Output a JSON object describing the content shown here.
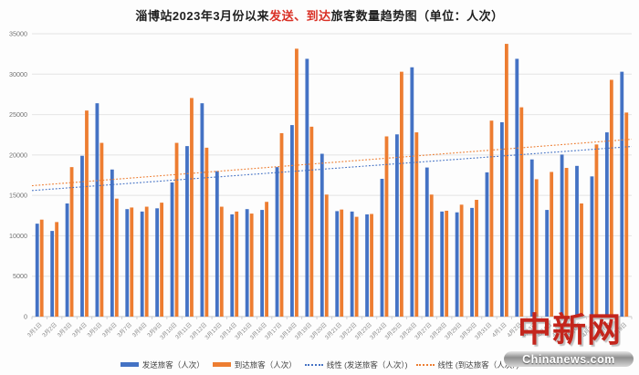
{
  "title": {
    "prefix": "淄博站2023年3月份以来",
    "highlight": "发送、到达",
    "suffix": "旅客数量趋势图（单位：人次）"
  },
  "watermark": {
    "logo_text": "中新网",
    "site_text": "Chinanews.com"
  },
  "chart_data": {
    "type": "bar",
    "title": "淄博站2023年3月份以来发送、到达旅客数量趋势图（单位：人次）",
    "xlabel": "",
    "ylabel": "",
    "ylim": [
      0,
      35000
    ],
    "ytick_step": 5000,
    "grid": true,
    "legend_position": "bottom",
    "categories": [
      "3月1日",
      "3月2日",
      "3月3日",
      "3月4日",
      "3月5日",
      "3月6日",
      "3月7日",
      "3月8日",
      "3月9日",
      "3月10日",
      "3月11日",
      "3月12日",
      "3月13日",
      "3月14日",
      "3月15日",
      "3月16日",
      "3月17日",
      "3月18日",
      "3月19日",
      "3月20日",
      "3月21日",
      "3月22日",
      "3月23日",
      "3月24日",
      "3月25日",
      "3月26日",
      "3月27日",
      "3月28日",
      "3月29日",
      "3月30日",
      "3月31日",
      "4月1日",
      "4月2日",
      "4月3日",
      "4月4日",
      "4月5日",
      "4月6日",
      "4月7日",
      "4月8日",
      "4月9日"
    ],
    "series": [
      {
        "name": "发送旅客（人次）",
        "color": "#4472C4",
        "values": [
          11500,
          10600,
          14000,
          19900,
          26400,
          18200,
          13300,
          13000,
          13400,
          16600,
          21100,
          26400,
          18000,
          12650,
          13300,
          13200,
          18500,
          23700,
          31900,
          20150,
          13050,
          13000,
          12650,
          17050,
          22550,
          30850,
          18450,
          13000,
          12900,
          13450,
          17850,
          24050,
          31900,
          19450,
          13200,
          20050,
          18650,
          17350,
          22800,
          30300
        ]
      },
      {
        "name": "到达旅客（人次）",
        "color": "#ED7D31",
        "values": [
          12000,
          11700,
          18500,
          25500,
          21500,
          14600,
          13500,
          13600,
          14100,
          21500,
          27050,
          20900,
          13600,
          13000,
          12750,
          14200,
          22700,
          33150,
          23500,
          15100,
          13250,
          12350,
          12700,
          22300,
          30300,
          22800,
          15100,
          13100,
          13850,
          14450,
          24250,
          33750,
          25900,
          17000,
          17900,
          18400,
          14000,
          21300,
          29300,
          25250
        ]
      }
    ],
    "trendlines": [
      {
        "name": "线性 (发送旅客（人次）)",
        "color": "#4472C4",
        "start": 15600,
        "end": 21050
      },
      {
        "name": "线性 (到达旅客（人次）)",
        "color": "#ED7D31",
        "start": 16200,
        "end": 21950
      }
    ],
    "legend": [
      {
        "type": "bar",
        "color": "#4472C4",
        "label": "发送旅客（人次）"
      },
      {
        "type": "bar",
        "color": "#ED7D31",
        "label": "到达旅客（人次）"
      },
      {
        "type": "line",
        "color": "#4472C4",
        "label": "线性 (发送旅客（人次）)"
      },
      {
        "type": "line",
        "color": "#ED7D31",
        "label": "线性 (到达旅客（人次）)"
      }
    ]
  }
}
